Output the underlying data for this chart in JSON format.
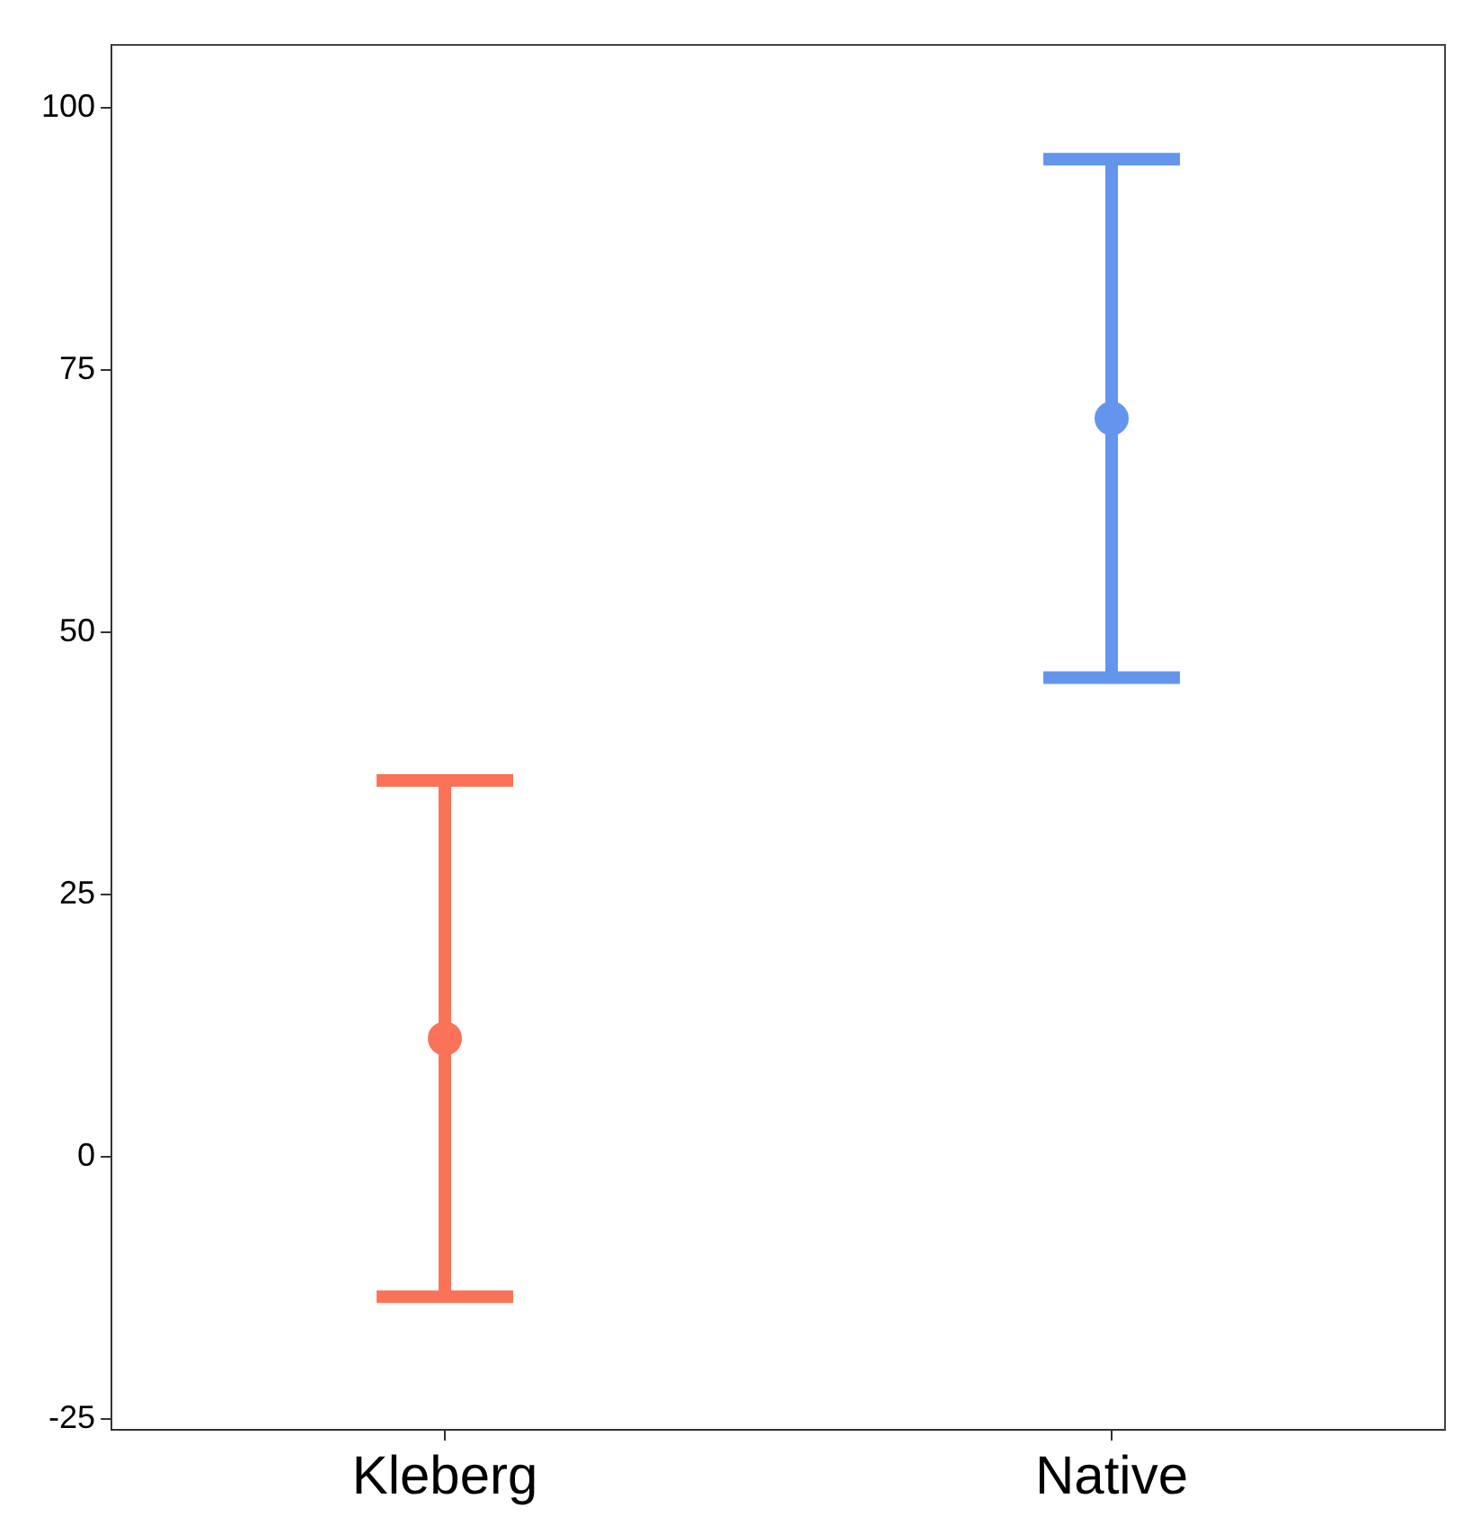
{
  "chart_data": {
    "type": "scatter",
    "categories": [
      "Kleberg",
      "Native"
    ],
    "values": [
      11.3,
      70.4
    ],
    "errors": [
      24.6,
      24.7
    ],
    "colors": [
      "#fa7358",
      "#6495ed"
    ],
    "ylim": [
      -26,
      106
    ],
    "yticks": [
      -25,
      0,
      25,
      50,
      75,
      100
    ],
    "grid": false,
    "legend": false,
    "marker": "circle"
  }
}
